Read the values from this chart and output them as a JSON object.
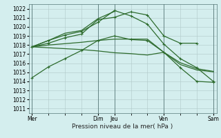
{
  "xlabel": "Pression niveau de la mer( hPa )",
  "ylim": [
    1010.5,
    1022.5
  ],
  "yticks": [
    1011,
    1012,
    1013,
    1014,
    1015,
    1016,
    1017,
    1018,
    1019,
    1020,
    1021,
    1022
  ],
  "line_color": "#2d6b2d",
  "bg_color": "#d4eeee",
  "grid_color": "#b0c8c8",
  "dark_grid_color": "#8aacac",
  "lines": {
    "line1": {
      "x": [
        0,
        1,
        2,
        3,
        4,
        5,
        6,
        7,
        8,
        9,
        10,
        11
      ],
      "y": [
        1014.4,
        1015.6,
        1016.5,
        1017.4,
        1018.5,
        1019.0,
        1018.6,
        1018.5,
        1017.2,
        1015.5,
        1014.0,
        1013.9
      ],
      "markers": true
    },
    "line2": {
      "x": [
        0,
        1,
        2,
        3,
        4,
        5,
        6,
        7,
        8,
        9,
        10,
        11
      ],
      "y": [
        1017.8,
        1018.0,
        1018.15,
        1018.3,
        1018.5,
        1018.65,
        1018.65,
        1018.65,
        1017.2,
        1015.85,
        1015.25,
        1015.05
      ],
      "markers": false
    },
    "line3": {
      "x": [
        0,
        1,
        2,
        3,
        4,
        5,
        6,
        7,
        8,
        9,
        10,
        11
      ],
      "y": [
        1017.8,
        1017.7,
        1017.6,
        1017.5,
        1017.35,
        1017.15,
        1017.05,
        1016.9,
        1017.2,
        1016.05,
        1015.4,
        1015.1
      ],
      "markers": false
    },
    "line4": {
      "x": [
        0,
        1,
        2,
        3,
        4,
        5,
        6,
        7,
        8,
        9,
        10
      ],
      "y": [
        1017.8,
        1018.2,
        1018.8,
        1019.2,
        1020.8,
        1021.05,
        1021.65,
        1021.3,
        1019.0,
        1018.2,
        1018.2
      ],
      "markers": true
    },
    "line5": {
      "x": [
        0,
        1,
        2,
        3,
        4,
        5,
        6,
        7,
        8,
        9,
        10,
        11
      ],
      "y": [
        1017.8,
        1018.5,
        1019.1,
        1019.5,
        1020.5,
        1021.8,
        1021.2,
        1020.3,
        1018.1,
        1016.5,
        1015.5,
        1014.0
      ],
      "markers": true
    },
    "line6": {
      "x": [
        0,
        1,
        2,
        3,
        4,
        5
      ],
      "y": [
        1017.8,
        1018.5,
        1019.3,
        1019.6,
        1020.9,
        1021.7
      ],
      "markers": false
    }
  },
  "vline_positions": [
    0,
    4,
    5,
    8,
    11
  ],
  "vline_color": "#557777",
  "xtick_positions": [
    0,
    4,
    5,
    8,
    11
  ],
  "xtick_labels": [
    "Mer",
    "Dim",
    "Jeu",
    "Ven",
    "Sam"
  ],
  "xlim": [
    -0.2,
    11.2
  ],
  "figsize": [
    3.2,
    2.0
  ],
  "dpi": 100
}
